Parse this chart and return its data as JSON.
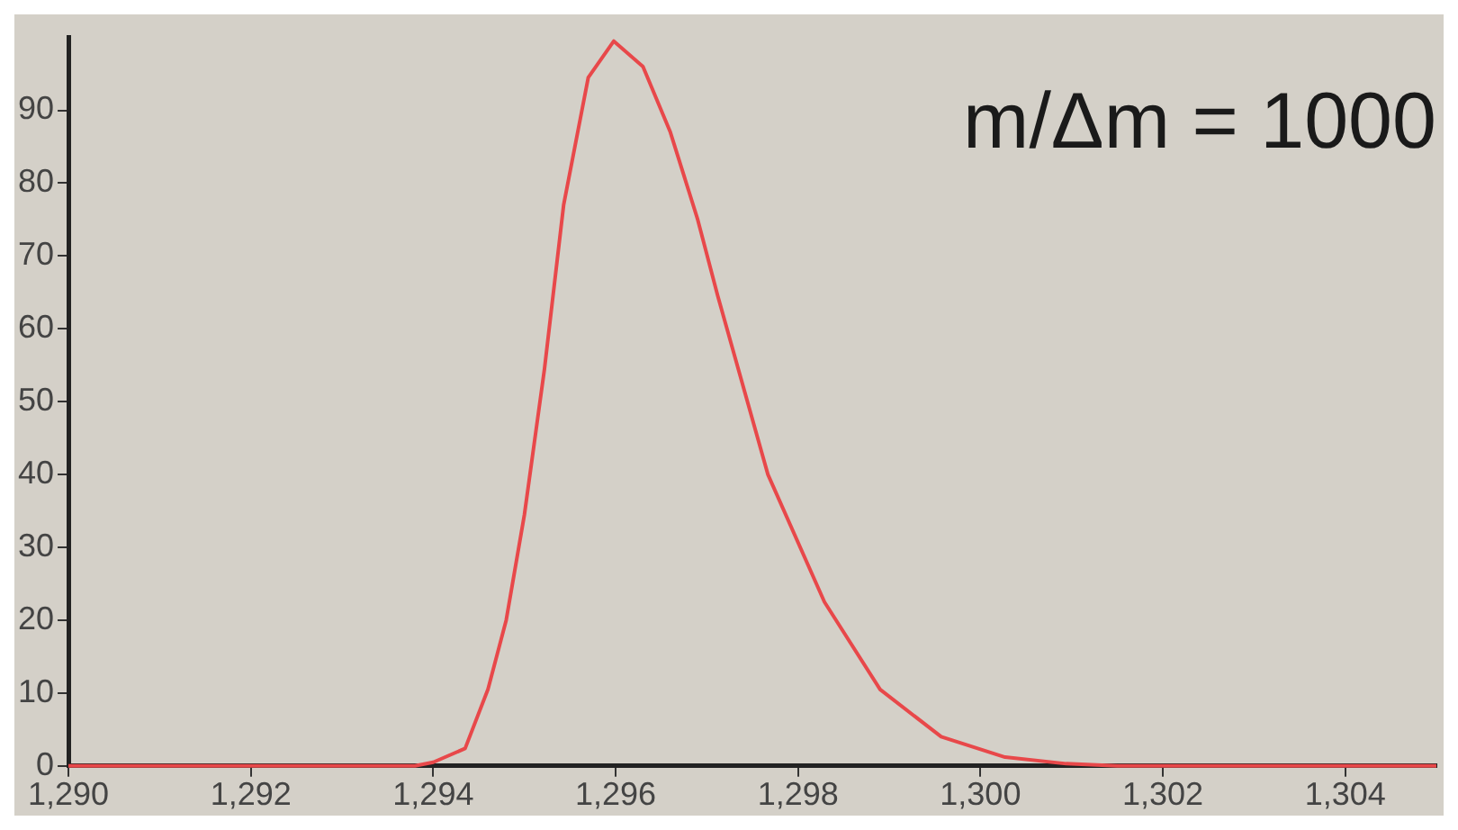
{
  "chart_data": {
    "type": "line",
    "annotations": [
      "m/Δm = 1000"
    ],
    "series": [
      {
        "color": "#e8484a",
        "x": [
          1290,
          1293.8,
          1294.0,
          1294.35,
          1294.6,
          1294.8,
          1295.0,
          1295.22,
          1295.43,
          1295.7,
          1295.98,
          1296.3,
          1296.6,
          1296.9,
          1297.12,
          1297.67,
          1298.29,
          1298.9,
          1299.57,
          1300.27,
          1300.94,
          1301.5,
          1305
        ],
        "values": [
          0,
          0,
          0.5,
          2.4,
          10.5,
          20,
          34.5,
          54.5,
          77,
          94.5,
          99.5,
          96,
          87,
          75,
          64.5,
          40,
          22.5,
          10.5,
          4,
          1.2,
          0.3,
          0,
          0
        ]
      }
    ],
    "xlim": [
      1290,
      1305
    ],
    "xticks": [
      {
        "value": 1290,
        "label": "1,290"
      },
      {
        "value": 1292,
        "label": "1,292"
      },
      {
        "value": 1294,
        "label": "1,294"
      },
      {
        "value": 1296,
        "label": "1,296"
      },
      {
        "value": 1298,
        "label": "1,298"
      },
      {
        "value": 1300,
        "label": "1,300"
      },
      {
        "value": 1302,
        "label": "1,302"
      },
      {
        "value": 1304,
        "label": "1,304"
      }
    ],
    "ylim": [
      0,
      100
    ],
    "yticks": [
      0,
      10,
      20,
      30,
      40,
      50,
      60,
      70,
      80,
      90
    ],
    "grid": false,
    "legend": false,
    "marker": "none",
    "line_style": "solid"
  }
}
